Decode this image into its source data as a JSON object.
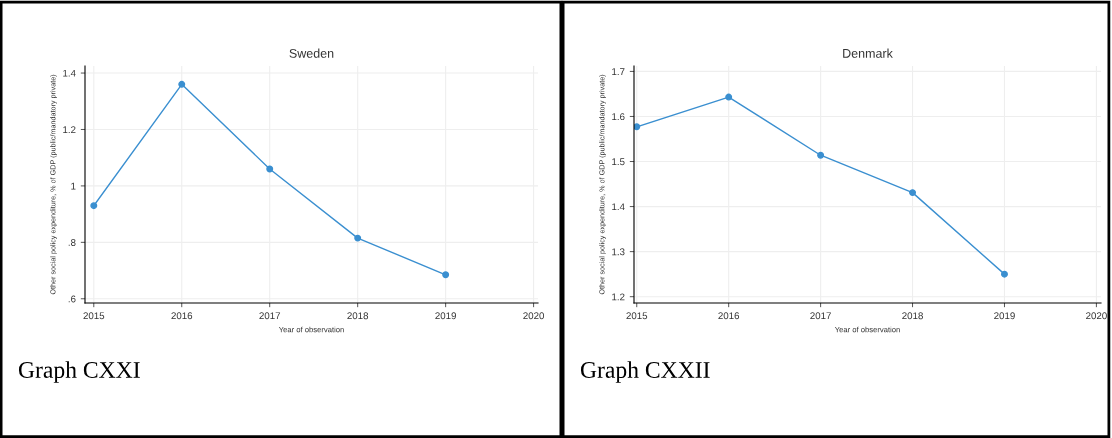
{
  "chart_data": [
    {
      "type": "line",
      "title": "Sweden",
      "xlabel": "Year of observation",
      "ylabel": "Other social policy expenditure, % of GDP (public/mandatory private)",
      "x": [
        2015,
        2016,
        2017,
        2018,
        2019
      ],
      "series": [
        {
          "color": "#3a8fd0",
          "values": [
            0.93,
            1.36,
            1.06,
            0.815,
            0.685
          ]
        }
      ],
      "xlim": [
        2014.9,
        2020.05
      ],
      "xticks": [
        2015,
        2016,
        2017,
        2018,
        2019,
        2020
      ],
      "ylim": [
        0.585,
        1.425
      ],
      "yticks": [
        {
          "value": 0.6,
          "label": ".6"
        },
        {
          "value": 0.8,
          "label": ".8"
        },
        1,
        1.2,
        1.4
      ],
      "grid": true,
      "marker": "circle",
      "line_style": "solid",
      "annotations": [
        "Graph CXXI"
      ]
    },
    {
      "type": "line",
      "title": "Denmark",
      "xlabel": "Year of observation",
      "ylabel": "Other social policy expenditure, % of GDP (public/mandatory private)",
      "x": [
        2015,
        2016,
        2017,
        2018,
        2019
      ],
      "series": [
        {
          "color": "#3a8fd0",
          "values": [
            1.577,
            1.643,
            1.514,
            1.431,
            1.25
          ]
        }
      ],
      "xlim": [
        2014.97,
        2020.05
      ],
      "xticks": [
        2015,
        2016,
        2017,
        2018,
        2019,
        2020
      ],
      "ylim": [
        1.186,
        1.712
      ],
      "yticks": [
        1.2,
        1.3,
        1.4,
        1.5,
        1.6,
        1.7
      ],
      "grid": true,
      "marker": "circle",
      "line_style": "solid",
      "annotations": [
        "Graph CXXII"
      ]
    }
  ]
}
